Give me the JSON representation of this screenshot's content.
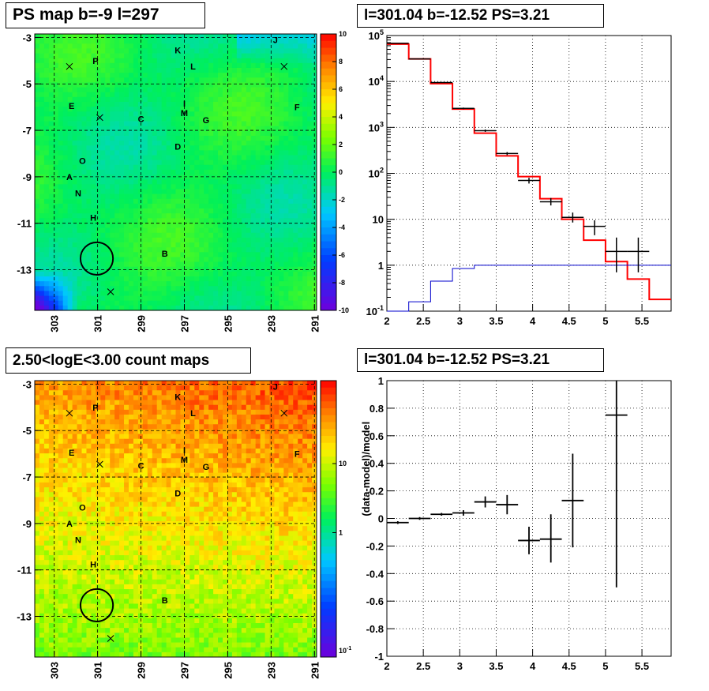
{
  "panels": {
    "tl": {
      "title": "PS map b=-9 l=297"
    },
    "tr": {
      "title": "l=301.04 b=-12.52 PS=3.21"
    },
    "bl": {
      "title": "2.50<logE<3.00 count maps"
    },
    "br": {
      "title": "l=301.04 b=-12.52 PS=3.21"
    }
  },
  "chart_data": [
    {
      "type": "heatmap",
      "title": "PS map b=-9 l=297",
      "x_ticks": [
        "303",
        "301",
        "299",
        "297",
        "295",
        "293",
        "291"
      ],
      "y_ticks": [
        "-3",
        "-5",
        "-7",
        "-9",
        "-11",
        "-13"
      ],
      "xlim": [
        303.9,
        290.9
      ],
      "ylim": [
        -14.75,
        -2.85
      ],
      "colorbar": {
        "ticks": [
          "10",
          "8",
          "6",
          "4",
          "2",
          "0",
          "-2",
          "-4",
          "-6",
          "-8",
          "-10"
        ],
        "range": [
          -10,
          10
        ],
        "scale": "linear"
      },
      "source_labels": [
        {
          "t": "J",
          "l": 292.8,
          "b": -3.1
        },
        {
          "t": "K",
          "l": 297.3,
          "b": -3.55
        },
        {
          "t": "P",
          "l": 301.1,
          "b": -4.0
        },
        {
          "t": "L",
          "l": 296.6,
          "b": -4.25
        },
        {
          "t": "E",
          "l": 302.2,
          "b": -5.95
        },
        {
          "t": "F",
          "l": 291.8,
          "b": -6.0
        },
        {
          "t": "I",
          "l": 297.0,
          "b": -5.85
        },
        {
          "t": "M",
          "l": 297.0,
          "b": -6.25
        },
        {
          "t": "C",
          "l": 299.0,
          "b": -6.5
        },
        {
          "t": "G",
          "l": 296.0,
          "b": -6.55
        },
        {
          "t": "D",
          "l": 297.3,
          "b": -7.7
        },
        {
          "t": "O",
          "l": 301.7,
          "b": -8.3
        },
        {
          "t": "A",
          "l": 302.3,
          "b": -9.0
        },
        {
          "t": "N",
          "l": 301.9,
          "b": -9.7
        },
        {
          "t": "H",
          "l": 301.2,
          "b": -10.75
        },
        {
          "t": "B",
          "l": 297.9,
          "b": -12.3
        }
      ],
      "markers_x": [
        {
          "l": 302.3,
          "b": -4.25
        },
        {
          "l": 300.9,
          "b": -6.45
        },
        {
          "l": 292.4,
          "b": -4.25
        },
        {
          "l": 300.4,
          "b": -13.95
        }
      ],
      "circle": {
        "l": 301.04,
        "b": -12.52,
        "r": 0.5
      }
    },
    {
      "type": "line",
      "title": "l=301.04 b=-12.52 PS=3.21",
      "xlim": [
        2.0,
        5.9
      ],
      "ylim": [
        0.1,
        100000
      ],
      "yscale": "log",
      "x_ticks": [
        "2",
        "2.5",
        "3",
        "3.5",
        "4",
        "4.5",
        "5",
        "5.5"
      ],
      "y_ticks": [
        "10^-1",
        "1",
        "10",
        "10^2",
        "10^3",
        "10^4",
        "10^5"
      ],
      "grid": true,
      "bin_edges": [
        2.0,
        2.3,
        2.6,
        2.9,
        3.2,
        3.5,
        3.8,
        4.1,
        4.4,
        4.7,
        5.0,
        5.3,
        5.6,
        5.9
      ],
      "series": [
        {
          "color": "#ff0000",
          "values": [
            65000,
            31000,
            9000,
            2500,
            750,
            240,
            85,
            28,
            10,
            3.5,
            1.2,
            0.5,
            0.18
          ]
        },
        {
          "color": "#0000cc",
          "values": [
            0.1,
            0.16,
            0.45,
            0.85,
            1.0,
            1.0,
            1.0,
            1.0,
            1.0,
            1.0,
            1.0,
            1.0,
            1.0
          ]
        },
        {
          "color": "#000000",
          "points": [
            {
              "x": 2.15,
              "y": 68000,
              "ylo": 68000,
              "yhi": 68000
            },
            {
              "x": 2.45,
              "y": 31000,
              "ylo": 31000,
              "yhi": 31000
            },
            {
              "x": 2.75,
              "y": 9500,
              "ylo": 9500,
              "yhi": 9500
            },
            {
              "x": 3.05,
              "y": 2600,
              "ylo": 2500,
              "yhi": 2700
            },
            {
              "x": 3.35,
              "y": 850,
              "ylo": 800,
              "yhi": 900
            },
            {
              "x": 3.65,
              "y": 270,
              "ylo": 250,
              "yhi": 290
            },
            {
              "x": 3.95,
              "y": 70,
              "ylo": 60,
              "yhi": 80
            },
            {
              "x": 4.25,
              "y": 24,
              "ylo": 20,
              "yhi": 29
            },
            {
              "x": 4.55,
              "y": 11,
              "ylo": 8.5,
              "yhi": 14
            },
            {
              "x": 4.85,
              "y": 7,
              "ylo": 4.5,
              "yhi": 9.5
            },
            {
              "x": 5.15,
              "y": 2,
              "ylo": 0.7,
              "yhi": 4
            },
            {
              "x": 5.45,
              "y": 2,
              "ylo": 0.7,
              "yhi": 4
            }
          ]
        }
      ]
    },
    {
      "type": "heatmap",
      "title": "2.50<logE<3.00 count maps",
      "x_ticks": [
        "303",
        "301",
        "299",
        "297",
        "295",
        "293",
        "291"
      ],
      "y_ticks": [
        "-3",
        "-5",
        "-7",
        "-9",
        "-11",
        "-13"
      ],
      "xlim": [
        303.9,
        290.9
      ],
      "ylim": [
        -14.75,
        -2.85
      ],
      "colorbar": {
        "ticks": [
          "10",
          "1"
        ],
        "range_label": "10^-1",
        "scale": "log"
      },
      "source_labels": [
        {
          "t": "J",
          "l": 292.8,
          "b": -3.1
        },
        {
          "t": "K",
          "l": 297.3,
          "b": -3.55
        },
        {
          "t": "P",
          "l": 301.1,
          "b": -4.0
        },
        {
          "t": "L",
          "l": 296.6,
          "b": -4.25
        },
        {
          "t": "E",
          "l": 302.2,
          "b": -5.95
        },
        {
          "t": "F",
          "l": 291.8,
          "b": -6.0
        },
        {
          "t": "I",
          "l": 297.0,
          "b": -5.85
        },
        {
          "t": "M",
          "l": 297.0,
          "b": -6.25
        },
        {
          "t": "C",
          "l": 299.0,
          "b": -6.5
        },
        {
          "t": "G",
          "l": 296.0,
          "b": -6.55
        },
        {
          "t": "D",
          "l": 297.3,
          "b": -7.7
        },
        {
          "t": "O",
          "l": 301.7,
          "b": -8.3
        },
        {
          "t": "A",
          "l": 302.3,
          "b": -9.0
        },
        {
          "t": "N",
          "l": 301.9,
          "b": -9.7
        },
        {
          "t": "H",
          "l": 301.2,
          "b": -10.75
        },
        {
          "t": "B",
          "l": 297.9,
          "b": -12.3
        }
      ],
      "markers_x": [
        {
          "l": 302.3,
          "b": -4.25
        },
        {
          "l": 300.9,
          "b": -6.45
        },
        {
          "l": 292.4,
          "b": -4.25
        },
        {
          "l": 300.4,
          "b": -13.95
        }
      ],
      "circle": {
        "l": 301.04,
        "b": -12.52,
        "r": 0.5
      }
    },
    {
      "type": "scatter",
      "title": "l=301.04 b=-12.52 PS=3.21",
      "ylabel": "(data-model)/model",
      "xlim": [
        2.0,
        5.9
      ],
      "ylim": [
        -1,
        1
      ],
      "x_ticks": [
        "2",
        "2.5",
        "3",
        "3.5",
        "4",
        "4.5",
        "5",
        "5.5"
      ],
      "y_ticks": [
        "-1",
        "-0.8",
        "-0.6",
        "-0.4",
        "-0.2",
        "0",
        "0.2",
        "0.4",
        "0.6",
        "0.8",
        "1"
      ],
      "grid": true,
      "points": [
        {
          "x": 2.15,
          "y": -0.03,
          "ylo": -0.04,
          "yhi": -0.02
        },
        {
          "x": 2.45,
          "y": 0.0,
          "ylo": -0.01,
          "yhi": 0.01
        },
        {
          "x": 2.75,
          "y": 0.03,
          "ylo": 0.02,
          "yhi": 0.04
        },
        {
          "x": 3.05,
          "y": 0.04,
          "ylo": 0.02,
          "yhi": 0.06
        },
        {
          "x": 3.35,
          "y": 0.12,
          "ylo": 0.08,
          "yhi": 0.16
        },
        {
          "x": 3.65,
          "y": 0.1,
          "ylo": 0.03,
          "yhi": 0.17
        },
        {
          "x": 3.95,
          "y": -0.16,
          "ylo": -0.26,
          "yhi": -0.06
        },
        {
          "x": 4.25,
          "y": -0.15,
          "ylo": -0.32,
          "yhi": 0.03
        },
        {
          "x": 4.55,
          "y": 0.13,
          "ylo": -0.21,
          "yhi": 0.47
        },
        {
          "x": 5.15,
          "y": 0.75,
          "ylo": -0.5,
          "yhi": 1.0
        }
      ]
    }
  ]
}
